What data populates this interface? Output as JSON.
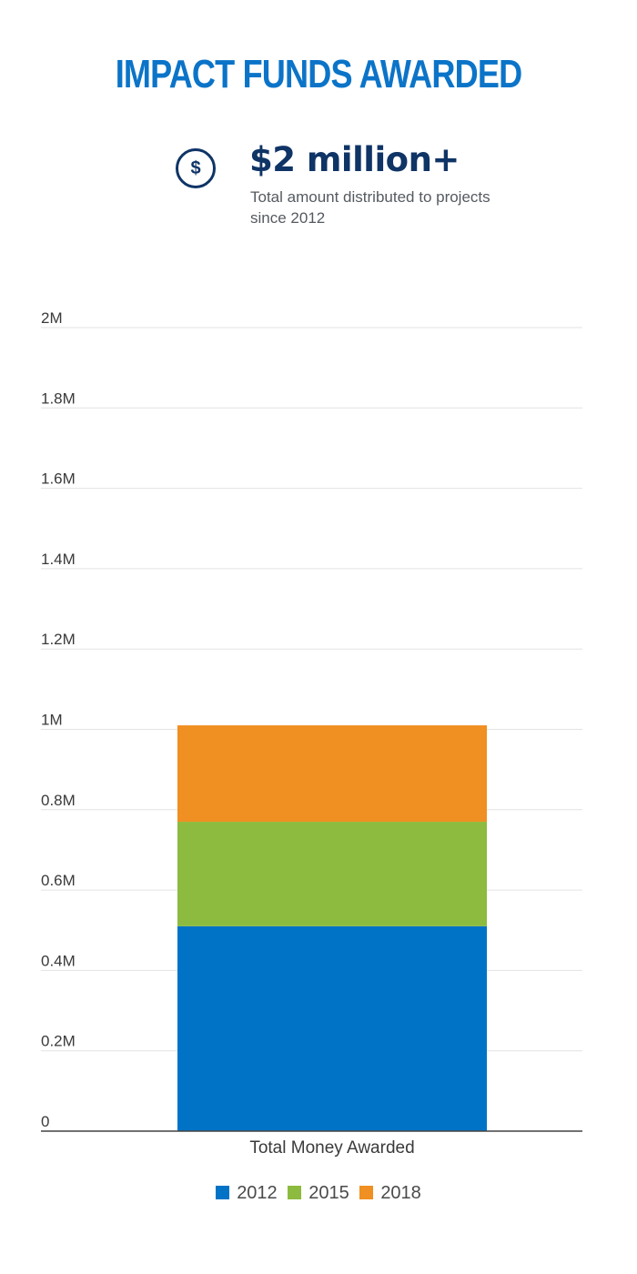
{
  "title": "IMPACT FUNDS AWARDED",
  "colors": {
    "title": "#0b74c8",
    "navy": "#0f3466",
    "s2012": "#0073c6",
    "s2015": "#8cbb3f",
    "s2018": "#f08f22",
    "grid": "#e3e3e3",
    "axis": "#444444"
  },
  "stat": {
    "icon": "dollar-circle-icon",
    "symbol": "$",
    "value": "$2 million+",
    "description": "Total amount distributed to projects since 2012"
  },
  "chart_data": {
    "type": "bar",
    "stacked": true,
    "categories": [
      "Total Money Awarded"
    ],
    "series": [
      {
        "name": "2012",
        "values": [
          510000
        ]
      },
      {
        "name": "2015",
        "values": [
          260000
        ]
      },
      {
        "name": "2018",
        "values": [
          240000
        ]
      }
    ],
    "ylim": [
      0,
      2000000
    ],
    "yticks": [
      0,
      200000,
      400000,
      600000,
      800000,
      1000000,
      1200000,
      1400000,
      1600000,
      1800000,
      2000000
    ],
    "ytick_labels": [
      "0",
      "0.2M",
      "0.4M",
      "0.6M",
      "0.8M",
      "1M",
      "1.2M",
      "1.4M",
      "1.6M",
      "1.8M",
      "2M"
    ],
    "title": "",
    "xlabel": "",
    "ylabel": "",
    "grid": true,
    "legend": "bottom-center"
  }
}
